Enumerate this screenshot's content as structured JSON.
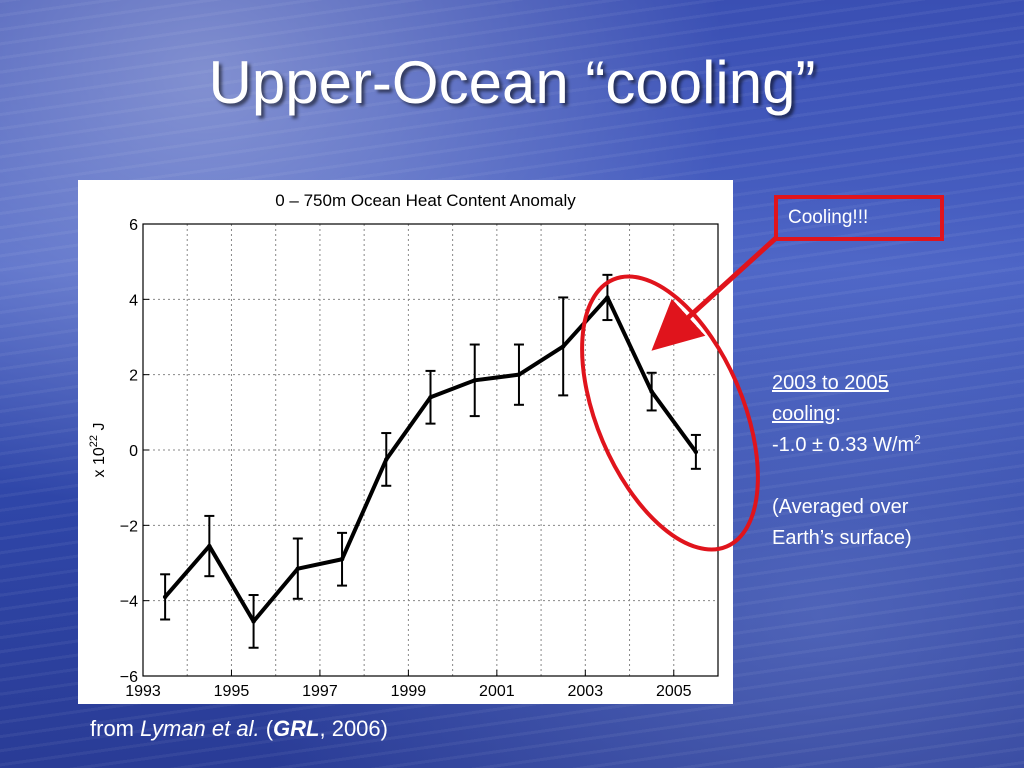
{
  "slide": {
    "title": "Upper-Ocean “cooling”",
    "callout": "Cooling!!!",
    "note": {
      "range_text": "2003 to 2005",
      "cooling_word": "cooling",
      "colon": ":",
      "rate": "-1.0 ± 0.33 W/m",
      "rate_exp": "2",
      "avg_line1": "(Averaged over",
      "avg_line2": "Earth’s surface)"
    },
    "source": {
      "from": "from ",
      "author": "Lyman et al.",
      "open_paren": " (",
      "journal": "GRL",
      "year_close": ", 2006)"
    },
    "colors": {
      "annotation_red": "#e0141c",
      "chart_line": "#000000",
      "slide_text": "#ffffff"
    }
  },
  "chart_data": {
    "type": "line",
    "title": "0 – 750m Ocean Heat Content Anomaly",
    "xlabel": "",
    "ylabel": "x 10",
    "ylabel_exp": "22",
    "ylabel_unit": "J",
    "xlim": [
      1993,
      2006
    ],
    "ylim": [
      -6,
      6
    ],
    "x_ticks": [
      1993,
      1995,
      1997,
      1999,
      2001,
      2003,
      2005
    ],
    "x_tick_labels": [
      "1993",
      "1995",
      "1997",
      "1999",
      "2001",
      "2003",
      "2005"
    ],
    "x_minor_gridlines": [
      1994,
      1996,
      1998,
      2000,
      2002,
      2004
    ],
    "y_ticks": [
      -6,
      -4,
      -2,
      0,
      2,
      4,
      6
    ],
    "y_tick_labels": [
      "−6",
      "−4",
      "−2",
      "0",
      "2",
      "4",
      "6"
    ],
    "grid": true,
    "series": [
      {
        "x": [
          1993.5,
          1994.5,
          1995.5,
          1996.5,
          1997.5,
          1998.5,
          1999.5,
          2000.5,
          2001.5,
          2002.5,
          2003.5,
          2004.5,
          2005.5
        ],
        "y": [
          -3.9,
          -2.55,
          -4.55,
          -3.15,
          -2.9,
          -0.25,
          1.4,
          1.85,
          2.0,
          2.75,
          4.05,
          1.55,
          -0.05
        ],
        "y_err": [
          0.6,
          0.8,
          0.7,
          0.8,
          0.7,
          0.7,
          0.7,
          0.95,
          0.8,
          1.3,
          0.6,
          0.5,
          0.45
        ]
      }
    ]
  }
}
